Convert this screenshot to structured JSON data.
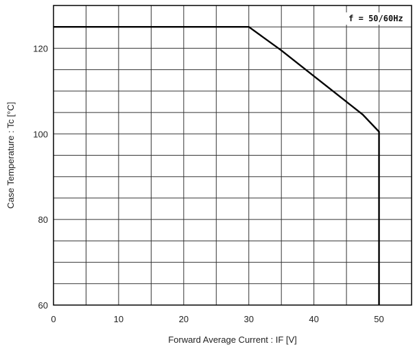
{
  "chart_data": {
    "type": "line",
    "title": "",
    "xlabel": "Forward Average Current : IF [V]",
    "ylabel": "Case Temperature : Tc [°C]",
    "xlim": [
      0,
      55
    ],
    "ylim": [
      60,
      130
    ],
    "x_ticks": [
      0,
      10,
      20,
      30,
      40,
      50
    ],
    "x_tick_labels": [
      "0",
      "10",
      "20",
      "30",
      "40",
      "50"
    ],
    "y_ticks": [
      60,
      80,
      100,
      120
    ],
    "y_tick_labels": [
      "60",
      "80",
      "100",
      "120"
    ],
    "grid": true,
    "x_grid_step": 5,
    "y_grid_step": 5,
    "annotation": "f = 50/60Hz",
    "series": [
      {
        "x": [
          0,
          30,
          35,
          40,
          45,
          47.5,
          50,
          50
        ],
        "y": [
          125,
          125,
          119.5,
          113.5,
          107.5,
          104.5,
          100.5,
          60
        ]
      }
    ],
    "colors": {
      "line": "#000000",
      "grid": "#333333",
      "frame": "#000000"
    }
  }
}
